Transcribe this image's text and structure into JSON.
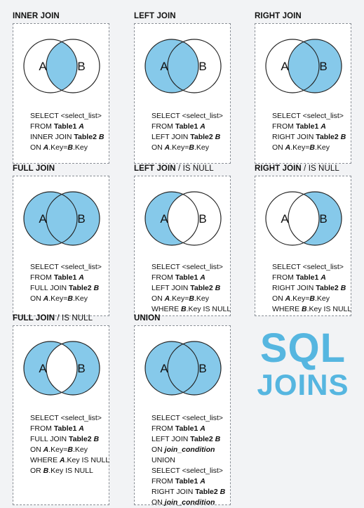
{
  "brand": {
    "line1": "SQL",
    "line2": "JOINS"
  },
  "colors": {
    "fill": "#86c9ea",
    "outline": "#222222",
    "brand": "#56b6e0"
  },
  "panels": [
    {
      "id": "inner-join",
      "title": "INNER JOIN",
      "title_suffix": "",
      "circle_left": "A",
      "circle_right": "B",
      "shade": "intersection",
      "code": [
        [
          {
            "t": "SELECT <select_list>",
            "s": ""
          }
        ],
        [
          {
            "t": "FROM ",
            "s": ""
          },
          {
            "t": "Table1",
            "s": "b"
          },
          {
            "t": " ",
            "s": ""
          },
          {
            "t": "A",
            "s": "bi"
          }
        ],
        [
          {
            "t": "INNER JOIN ",
            "s": ""
          },
          {
            "t": "Table2",
            "s": "b"
          },
          {
            "t": " ",
            "s": ""
          },
          {
            "t": "B",
            "s": "bi"
          }
        ],
        [
          {
            "t": "ON ",
            "s": ""
          },
          {
            "t": "A",
            "s": "bi"
          },
          {
            "t": ".Key=",
            "s": ""
          },
          {
            "t": "B",
            "s": "bi"
          },
          {
            "t": ".Key",
            "s": ""
          }
        ]
      ]
    },
    {
      "id": "left-join",
      "title": "LEFT JOIN",
      "title_suffix": "",
      "circle_left": "A",
      "circle_right": "B",
      "shade": "left",
      "code": [
        [
          {
            "t": "SELECT <select_list>",
            "s": ""
          }
        ],
        [
          {
            "t": "FROM ",
            "s": ""
          },
          {
            "t": "Table1",
            "s": "b"
          },
          {
            "t": " ",
            "s": ""
          },
          {
            "t": "A",
            "s": "bi"
          }
        ],
        [
          {
            "t": "LEFT JOIN ",
            "s": ""
          },
          {
            "t": "Table2",
            "s": "b"
          },
          {
            "t": " ",
            "s": ""
          },
          {
            "t": "B",
            "s": "bi"
          }
        ],
        [
          {
            "t": "ON ",
            "s": ""
          },
          {
            "t": "A",
            "s": "bi"
          },
          {
            "t": ".Key=",
            "s": ""
          },
          {
            "t": "B",
            "s": "bi"
          },
          {
            "t": ".Key",
            "s": ""
          }
        ]
      ]
    },
    {
      "id": "right-join",
      "title": "RIGHT JOIN",
      "title_suffix": "",
      "circle_left": "A",
      "circle_right": "B",
      "shade": "right",
      "code": [
        [
          {
            "t": "SELECT <select_list>",
            "s": ""
          }
        ],
        [
          {
            "t": "FROM ",
            "s": ""
          },
          {
            "t": "Table1",
            "s": "b"
          },
          {
            "t": " ",
            "s": ""
          },
          {
            "t": "A",
            "s": "bi"
          }
        ],
        [
          {
            "t": "RIGHT JOIN ",
            "s": ""
          },
          {
            "t": "Table2",
            "s": "b"
          },
          {
            "t": " ",
            "s": ""
          },
          {
            "t": "B",
            "s": "bi"
          }
        ],
        [
          {
            "t": "ON ",
            "s": ""
          },
          {
            "t": "A",
            "s": "bi"
          },
          {
            "t": ".Key=",
            "s": ""
          },
          {
            "t": "B",
            "s": "bi"
          },
          {
            "t": ".Key",
            "s": ""
          }
        ]
      ]
    },
    {
      "id": "full-join",
      "title": "FULL JOIN",
      "title_suffix": "",
      "circle_left": "A",
      "circle_right": "B",
      "shade": "full",
      "code": [
        [
          {
            "t": "SELECT <select_list>",
            "s": ""
          }
        ],
        [
          {
            "t": "FROM ",
            "s": ""
          },
          {
            "t": "Table1",
            "s": "b"
          },
          {
            "t": " ",
            "s": ""
          },
          {
            "t": "A",
            "s": "bi"
          }
        ],
        [
          {
            "t": "FULL JOIN ",
            "s": ""
          },
          {
            "t": "Table2",
            "s": "b"
          },
          {
            "t": " ",
            "s": ""
          },
          {
            "t": "B",
            "s": "bi"
          }
        ],
        [
          {
            "t": "ON ",
            "s": ""
          },
          {
            "t": "A",
            "s": "bi"
          },
          {
            "t": ".Key=",
            "s": ""
          },
          {
            "t": "B",
            "s": "bi"
          },
          {
            "t": ".Key",
            "s": ""
          }
        ]
      ]
    },
    {
      "id": "left-join-null",
      "title": "LEFT JOIN",
      "title_suffix": " / IS NULL",
      "circle_left": "A",
      "circle_right": "B",
      "shade": "left-only",
      "code": [
        [
          {
            "t": "SELECT <select_list>",
            "s": ""
          }
        ],
        [
          {
            "t": "FROM ",
            "s": ""
          },
          {
            "t": "Table1",
            "s": "b"
          },
          {
            "t": " ",
            "s": ""
          },
          {
            "t": "A",
            "s": "bi"
          }
        ],
        [
          {
            "t": "LEFT JOIN ",
            "s": ""
          },
          {
            "t": "Table2",
            "s": "b"
          },
          {
            "t": " ",
            "s": ""
          },
          {
            "t": "B",
            "s": "bi"
          }
        ],
        [
          {
            "t": "ON ",
            "s": ""
          },
          {
            "t": "A",
            "s": "bi"
          },
          {
            "t": ".Key=",
            "s": ""
          },
          {
            "t": "B",
            "s": "bi"
          },
          {
            "t": ".Key",
            "s": ""
          }
        ],
        [
          {
            "t": "WHERE ",
            "s": ""
          },
          {
            "t": "B",
            "s": "bi"
          },
          {
            "t": ".Key IS NULL",
            "s": ""
          }
        ]
      ]
    },
    {
      "id": "right-join-null",
      "title": "RIGHT JOIN",
      "title_suffix": " / IS NULL",
      "circle_left": "A",
      "circle_right": "B",
      "shade": "right-only",
      "code": [
        [
          {
            "t": "SELECT <select_list>",
            "s": ""
          }
        ],
        [
          {
            "t": "FROM ",
            "s": ""
          },
          {
            "t": "Table1",
            "s": "b"
          },
          {
            "t": " ",
            "s": ""
          },
          {
            "t": "A",
            "s": "bi"
          }
        ],
        [
          {
            "t": "RIGHT JOIN ",
            "s": ""
          },
          {
            "t": "Table2",
            "s": "b"
          },
          {
            "t": " ",
            "s": ""
          },
          {
            "t": "B",
            "s": "bi"
          }
        ],
        [
          {
            "t": "ON ",
            "s": ""
          },
          {
            "t": "A",
            "s": "bi"
          },
          {
            "t": ".Key=",
            "s": ""
          },
          {
            "t": "B",
            "s": "bi"
          },
          {
            "t": ".Key",
            "s": ""
          }
        ],
        [
          {
            "t": "WHERE ",
            "s": ""
          },
          {
            "t": "B",
            "s": "bi"
          },
          {
            "t": ".Key IS NULL",
            "s": ""
          }
        ]
      ]
    },
    {
      "id": "full-join-null",
      "title": "FULL JOIN",
      "title_suffix": " / IS NULL",
      "circle_left": "A",
      "circle_right": "B",
      "shade": "exclusive",
      "code": [
        [
          {
            "t": "SELECT <select_list>",
            "s": ""
          }
        ],
        [
          {
            "t": "FROM ",
            "s": ""
          },
          {
            "t": "Table1",
            "s": "b"
          },
          {
            "t": " ",
            "s": ""
          },
          {
            "t": "A",
            "s": "bi"
          }
        ],
        [
          {
            "t": "FULL JOIN ",
            "s": ""
          },
          {
            "t": "Table2",
            "s": "b"
          },
          {
            "t": " ",
            "s": ""
          },
          {
            "t": "B",
            "s": "bi"
          }
        ],
        [
          {
            "t": "ON ",
            "s": ""
          },
          {
            "t": "A",
            "s": "bi"
          },
          {
            "t": ".Key=",
            "s": ""
          },
          {
            "t": "B",
            "s": "bi"
          },
          {
            "t": ".Key",
            "s": ""
          }
        ],
        [
          {
            "t": "WHERE ",
            "s": ""
          },
          {
            "t": "A",
            "s": "bi"
          },
          {
            "t": ".Key IS NULL",
            "s": ""
          }
        ],
        [
          {
            "t": "OR ",
            "s": ""
          },
          {
            "t": "B",
            "s": "bi"
          },
          {
            "t": ".Key IS NULL",
            "s": ""
          }
        ]
      ]
    },
    {
      "id": "union",
      "title": "UNION",
      "title_suffix": "",
      "circle_left": "A",
      "circle_right": "B",
      "shade": "full",
      "code": [
        [
          {
            "t": "SELECT <select_list>",
            "s": ""
          }
        ],
        [
          {
            "t": "FROM ",
            "s": ""
          },
          {
            "t": "Table1",
            "s": "b"
          },
          {
            "t": " ",
            "s": ""
          },
          {
            "t": "A",
            "s": "bi"
          }
        ],
        [
          {
            "t": "LEFT JOIN ",
            "s": ""
          },
          {
            "t": "Table2",
            "s": "b"
          },
          {
            "t": " ",
            "s": ""
          },
          {
            "t": "B",
            "s": "bi"
          }
        ],
        [
          {
            "t": "ON ",
            "s": ""
          },
          {
            "t": "join_condition",
            "s": "bi"
          }
        ],
        [
          {
            "t": "UNION",
            "s": ""
          }
        ],
        [
          {
            "t": "SELECT <select_list>",
            "s": ""
          }
        ],
        [
          {
            "t": "FROM ",
            "s": ""
          },
          {
            "t": "Table1",
            "s": "b"
          },
          {
            "t": " ",
            "s": ""
          },
          {
            "t": "A",
            "s": "bi"
          }
        ],
        [
          {
            "t": "RIGHT JOIN ",
            "s": ""
          },
          {
            "t": "Table2",
            "s": "b"
          },
          {
            "t": " ",
            "s": ""
          },
          {
            "t": "B",
            "s": "bi"
          }
        ],
        [
          {
            "t": "ON ",
            "s": ""
          },
          {
            "t": "join_condition",
            "s": "bi"
          }
        ]
      ]
    }
  ]
}
